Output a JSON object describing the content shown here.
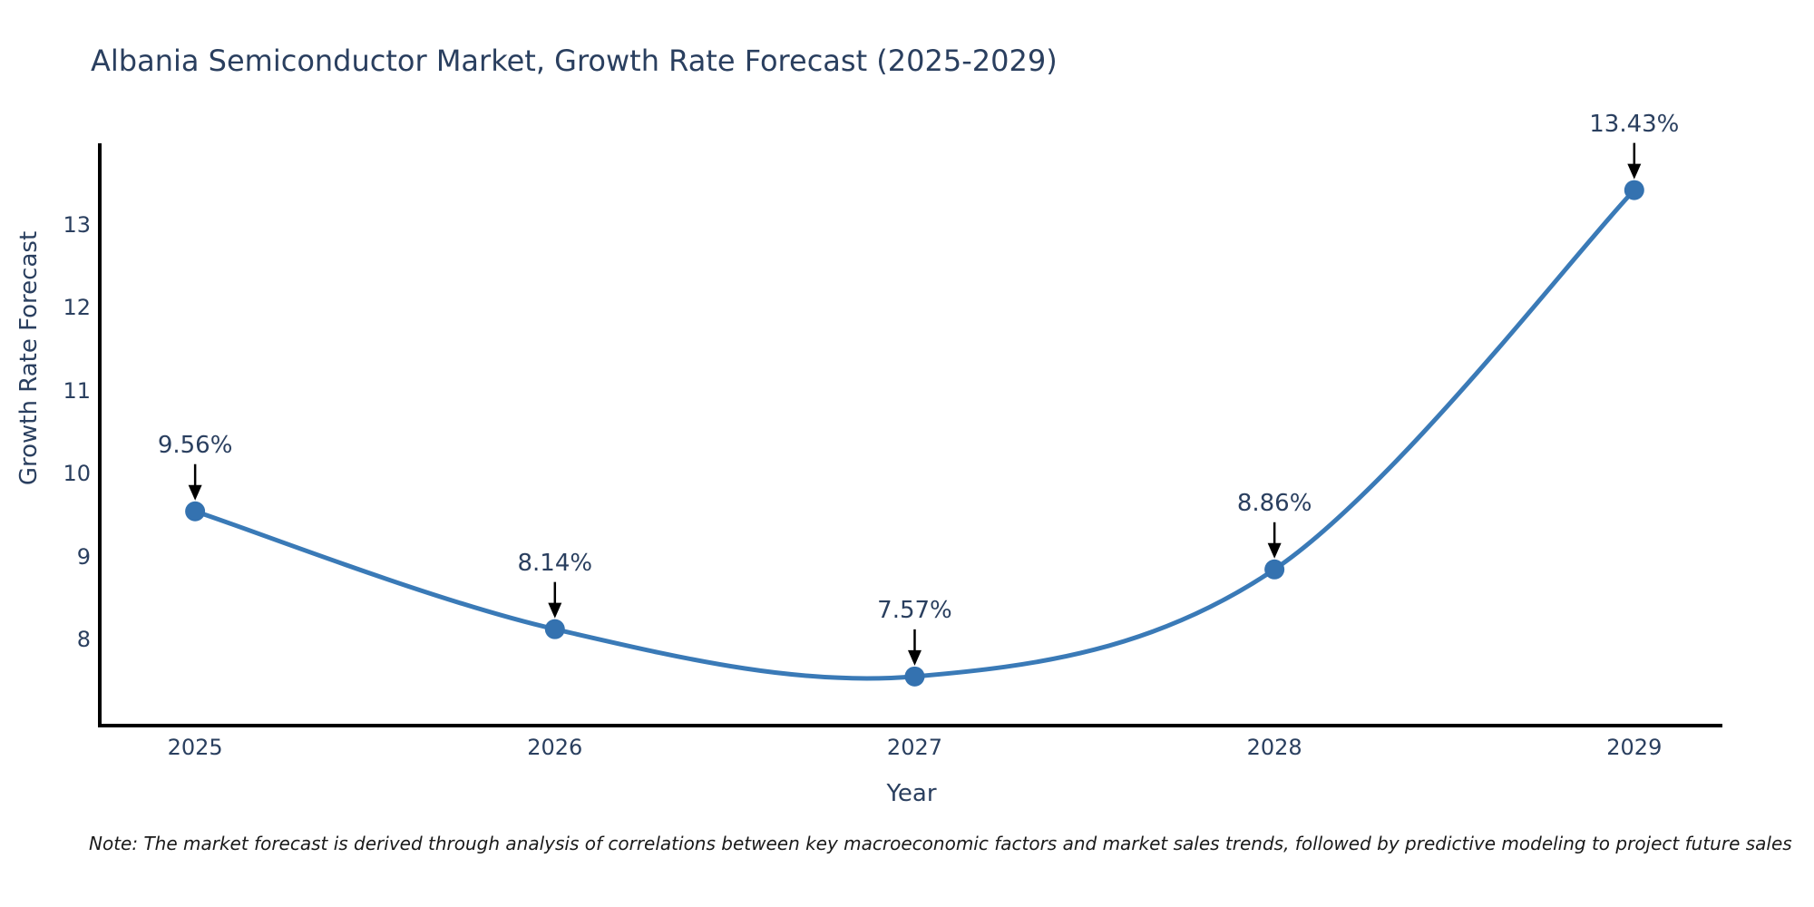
{
  "title": "Albania Semiconductor Market, Growth Rate Forecast (2025-2029)",
  "note": "Note: The market forecast is derived through analysis of correlations between key macroeconomic factors and market sales trends, followed by predictive modeling to project future sales",
  "chart_data": {
    "type": "line",
    "title": "Albania Semiconductor Market, Growth Rate Forecast (2025-2029)",
    "xlabel": "Year",
    "ylabel": "Growth Rate Forecast",
    "line_shape": "spline",
    "grid": false,
    "legend": false,
    "x": [
      2025,
      2026,
      2027,
      2028,
      2029
    ],
    "values": [
      9.56,
      8.14,
      7.57,
      8.86,
      13.43
    ],
    "point_labels": [
      "9.56%",
      "8.14%",
      "7.57%",
      "8.86%",
      "13.43%"
    ],
    "xtick_labels": [
      "2025",
      "2026",
      "2027",
      "2028",
      "2029"
    ],
    "ytick_values": [
      8,
      9,
      10,
      11,
      12,
      13
    ],
    "xlim": [
      2024.74,
      2029.245
    ],
    "ylim": [
      7.0,
      13.95
    ],
    "colors": {
      "line": "#3a7ab7",
      "marker": "#3472b0",
      "text": "#2a3f5f",
      "axis": "#000000",
      "annotation_arrow": "#000000",
      "background": "#ffffff"
    }
  }
}
